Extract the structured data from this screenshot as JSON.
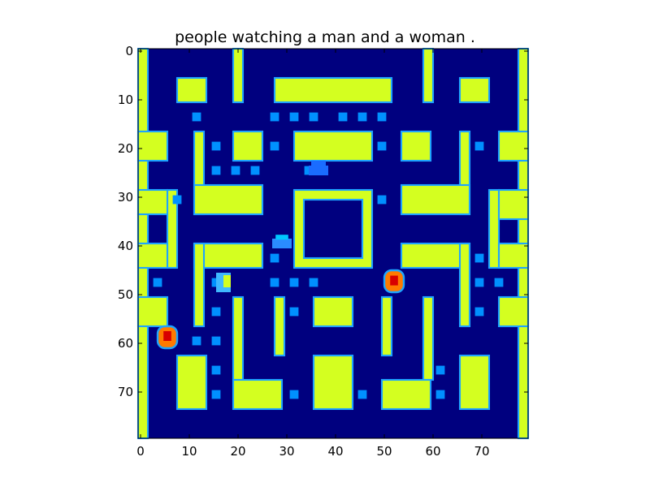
{
  "title": "people watching a man and a woman .",
  "colors": {
    "background": "#00007f",
    "wall": "#d4ff20",
    "wall_edge": "#1ea4ff",
    "pellet": "#0090ff",
    "ghost": "#ff7a00",
    "ghost_core": "#d80000"
  },
  "axes": {
    "x_ticks": [
      "0",
      "10",
      "20",
      "30",
      "40",
      "50",
      "60",
      "70"
    ],
    "y_ticks": [
      "0",
      "10",
      "20",
      "30",
      "40",
      "50",
      "60",
      "70"
    ],
    "x_range": [
      0,
      79
    ],
    "y_range": [
      0,
      79
    ]
  },
  "game": {
    "name": "Pac-Man style maze",
    "sprites": [
      "ghost-sprite-right",
      "ghost-sprite-left",
      "pacman-sprite",
      "ghost-sprite-small"
    ]
  }
}
